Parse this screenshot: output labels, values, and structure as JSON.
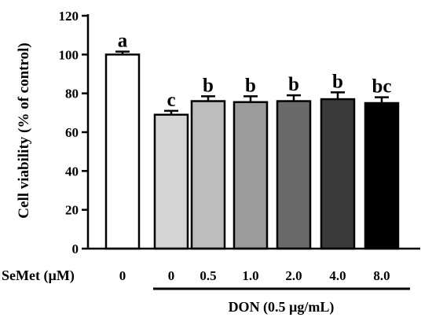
{
  "chart_data": {
    "type": "bar",
    "ylabel": "Cell viability (% of control)",
    "ylim": [
      0,
      120
    ],
    "yticks": [
      0,
      20,
      40,
      60,
      80,
      100,
      120
    ],
    "row_label": "SeMet (µM)",
    "categories": [
      "0",
      "0",
      "0.5",
      "1.0",
      "2.0",
      "4.0",
      "8.0"
    ],
    "values": [
      100,
      69,
      76,
      75.5,
      76,
      77,
      75
    ],
    "errors": [
      1.5,
      2,
      2.5,
      3,
      3,
      3.5,
      3
    ],
    "significance_letters": [
      "a",
      "c",
      "b",
      "b",
      "b",
      "b",
      "bc"
    ],
    "bar_colors": [
      "#ffffff",
      "#d4d4d4",
      "#bdbdbd",
      "#9b9b9b",
      "#6a6a6a",
      "#3a3a3a",
      "#000000"
    ],
    "group_label": "DON (0.5 µg/mL)"
  }
}
